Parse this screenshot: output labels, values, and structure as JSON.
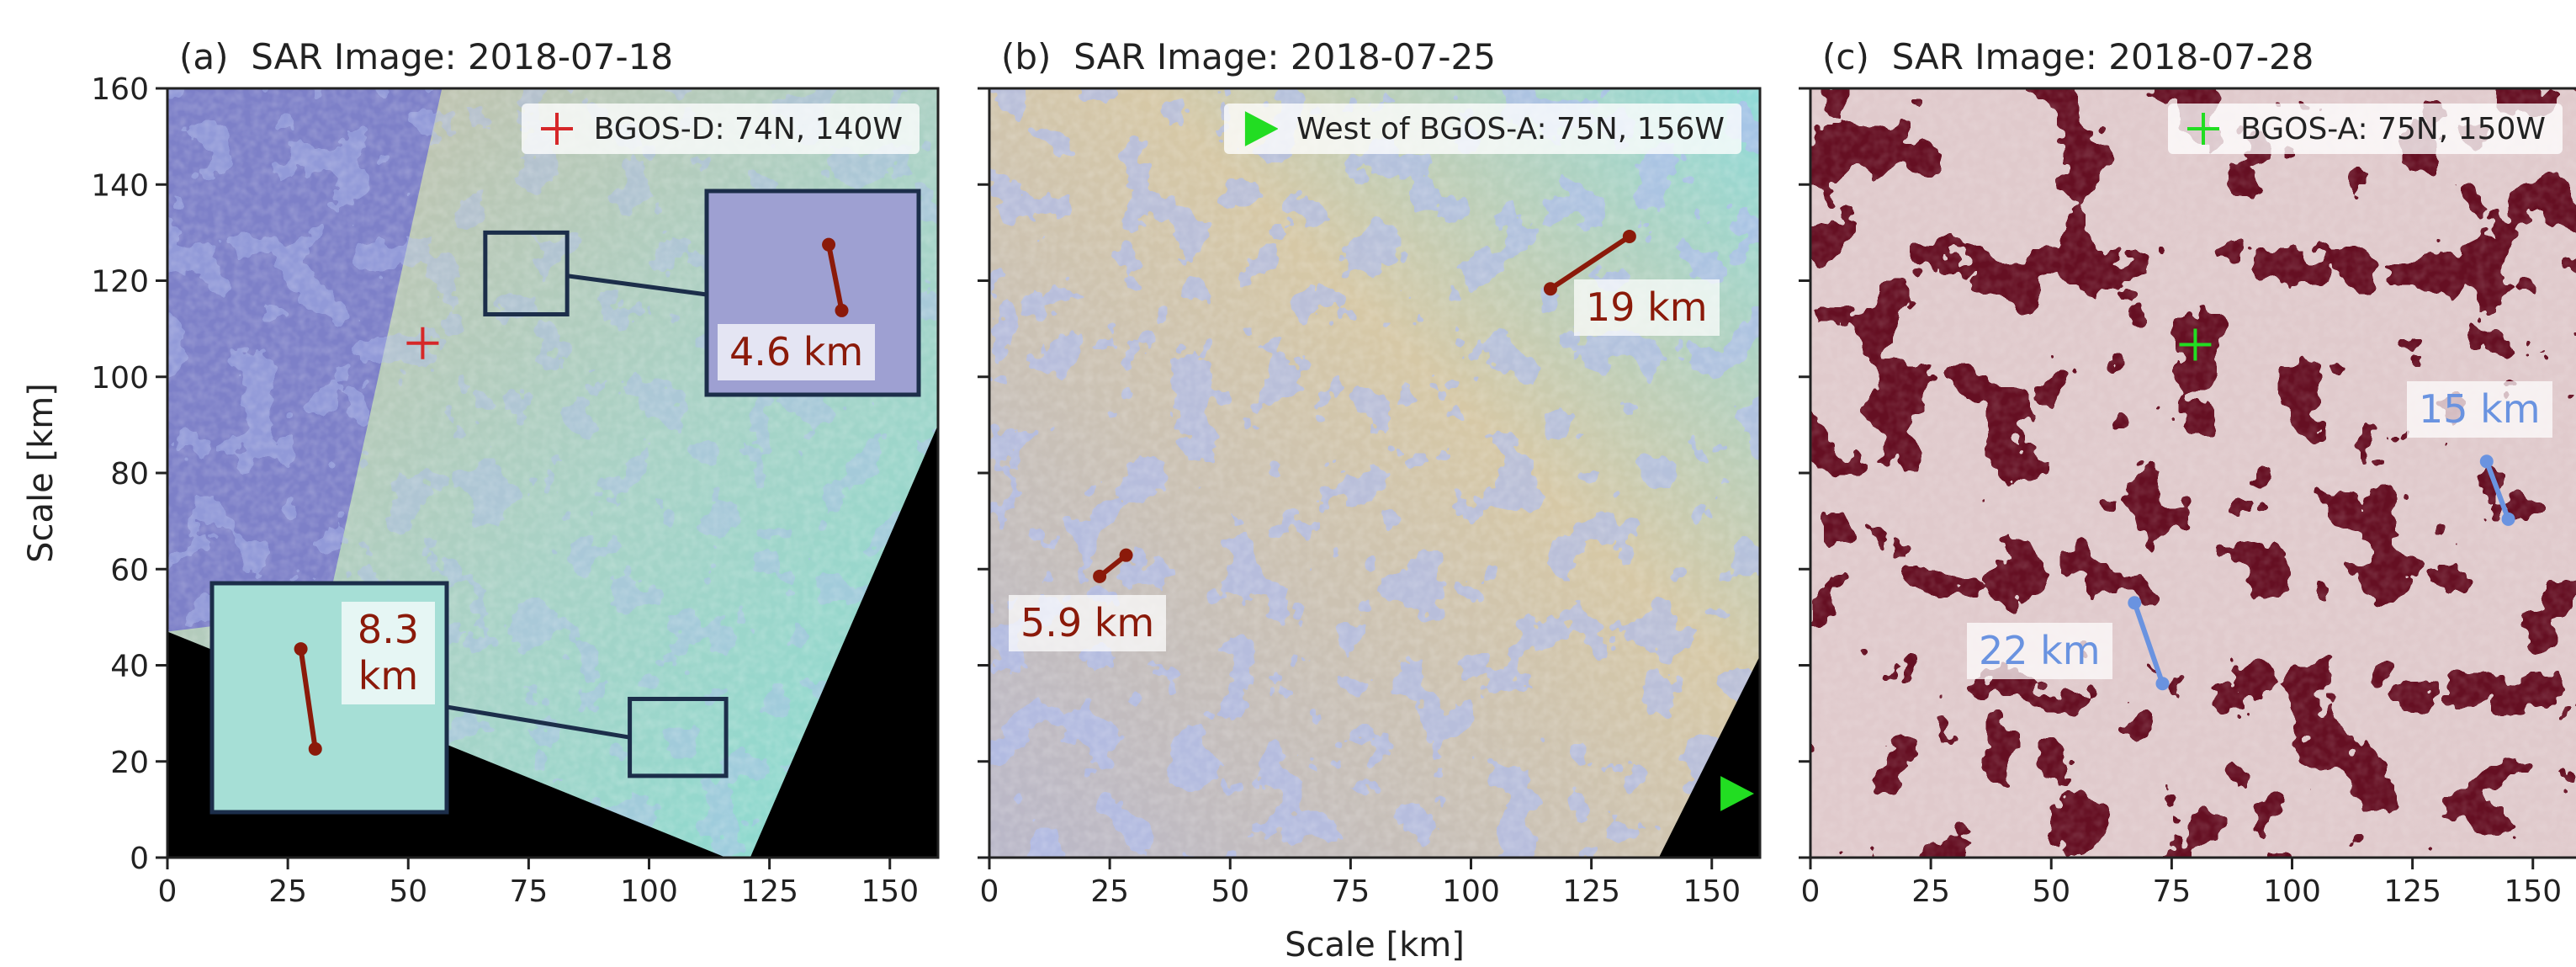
{
  "chart_data": [
    {
      "type": "image",
      "title": "(a)  SAR Image: 2018-07-18",
      "ylabel": "Scale [km]",
      "xlim": [
        0,
        160
      ],
      "ylim": [
        0,
        160
      ],
      "xticks": [
        0,
        25,
        50,
        75,
        100,
        125,
        150
      ],
      "yticks": [
        0,
        20,
        40,
        60,
        80,
        100,
        120,
        140,
        160
      ],
      "show_ytick_labels": true,
      "location": {
        "name": "BGOS-D: 74N, 140W",
        "marker": "plus",
        "color": "#d62728",
        "x": 53,
        "y": 107
      },
      "segments": [
        {
          "label": "4.6 km",
          "color": "#8b1a0a",
          "x": [
            137.3,
            140.0
          ],
          "y": [
            127.5,
            113.8
          ]
        },
        {
          "label": "8.3 km",
          "color": "#8b1a0a",
          "x": [
            27.7,
            30.7
          ],
          "y": [
            43.4,
            22.6
          ]
        }
      ]
    },
    {
      "type": "image",
      "title": "(b)  SAR Image: 2018-07-25",
      "xlabel": "Scale [km]",
      "xlim": [
        0,
        160
      ],
      "ylim": [
        0,
        160
      ],
      "xticks": [
        0,
        25,
        50,
        75,
        100,
        125,
        150
      ],
      "yticks": [
        0,
        20,
        40,
        60,
        80,
        100,
        120,
        140,
        160
      ],
      "show_ytick_labels": false,
      "location": {
        "name": "West of BGOS-A: 75N, 156W",
        "marker": "triangle",
        "color": "#22dd22",
        "x": 154.8,
        "y": 13.3
      },
      "segments": [
        {
          "label": "19 km",
          "color": "#8b1a0a",
          "x": [
            116.5,
            132.9
          ],
          "y": [
            118.3,
            129.2
          ]
        },
        {
          "label": "5.9 km",
          "color": "#8b1a0a",
          "x": [
            22.9,
            28.4
          ],
          "y": [
            58.5,
            62.9
          ]
        }
      ]
    },
    {
      "type": "image",
      "title": "(c)  SAR Image: 2018-07-28",
      "xlim": [
        0,
        160
      ],
      "ylim": [
        0,
        160
      ],
      "xticks": [
        0,
        25,
        50,
        75,
        100,
        125,
        150
      ],
      "yticks": [
        0,
        20,
        40,
        60,
        80,
        100,
        120,
        140,
        160
      ],
      "show_ytick_labels": false,
      "location": {
        "name": "BGOS-A: 75N, 150W",
        "marker": "plus",
        "color": "#22dd22",
        "x": 79.9,
        "y": 106.7
      },
      "segments": [
        {
          "label": "15 km",
          "color": "#6a93e0",
          "x": [
            140.4,
            144.9
          ],
          "y": [
            82.4,
            70.4
          ]
        },
        {
          "label": "22 km",
          "color": "#6a93e0",
          "x": [
            67.3,
            73.1
          ],
          "y": [
            53.0,
            36.2
          ]
        }
      ]
    }
  ]
}
